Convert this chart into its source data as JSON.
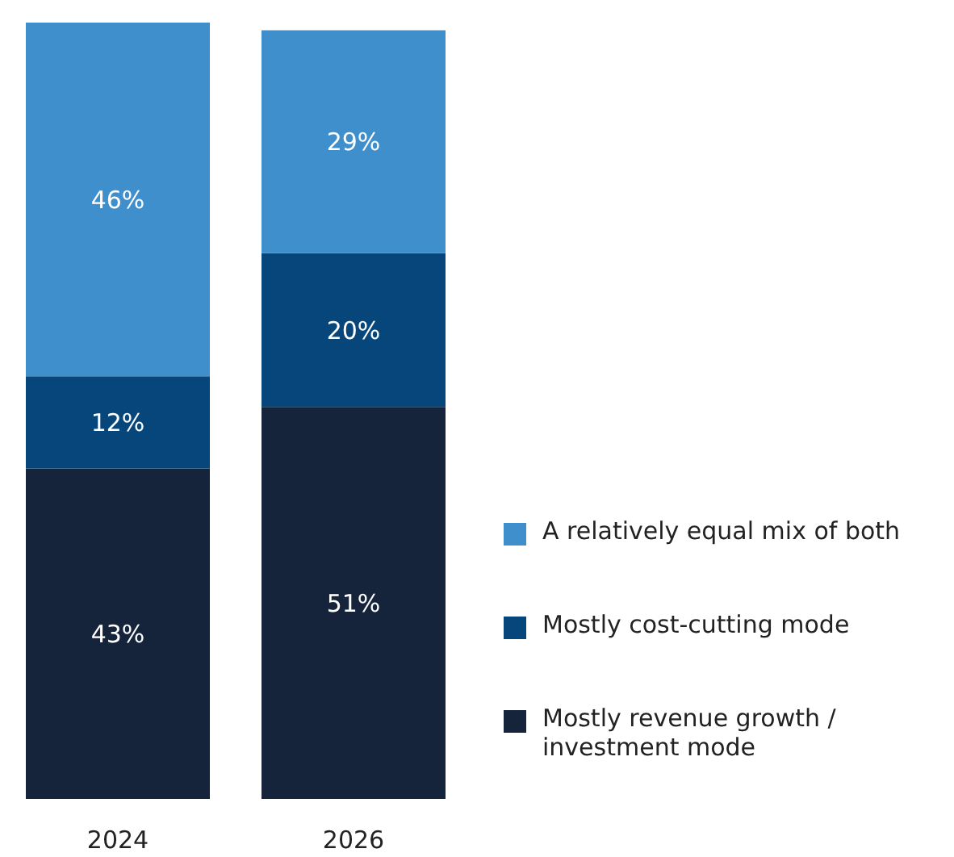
{
  "chart_data": {
    "type": "bar",
    "stacked": true,
    "legend": "right",
    "categories": [
      "2024",
      "2026"
    ],
    "series": [
      {
        "name": "Mostly revenue growth / investment mode",
        "color": "#15243b",
        "values": [
          43,
          51
        ],
        "value_labels": [
          "43%",
          "51%"
        ]
      },
      {
        "name": "Mostly cost-cutting mode",
        "color": "#07467a",
        "values": [
          12,
          20
        ],
        "value_labels": [
          "12%",
          "20%"
        ]
      },
      {
        "name": "A relatively equal mix of both",
        "color": "#3f8fcd",
        "values": [
          46,
          29
        ],
        "value_labels": [
          "46%",
          "29%"
        ]
      }
    ]
  }
}
